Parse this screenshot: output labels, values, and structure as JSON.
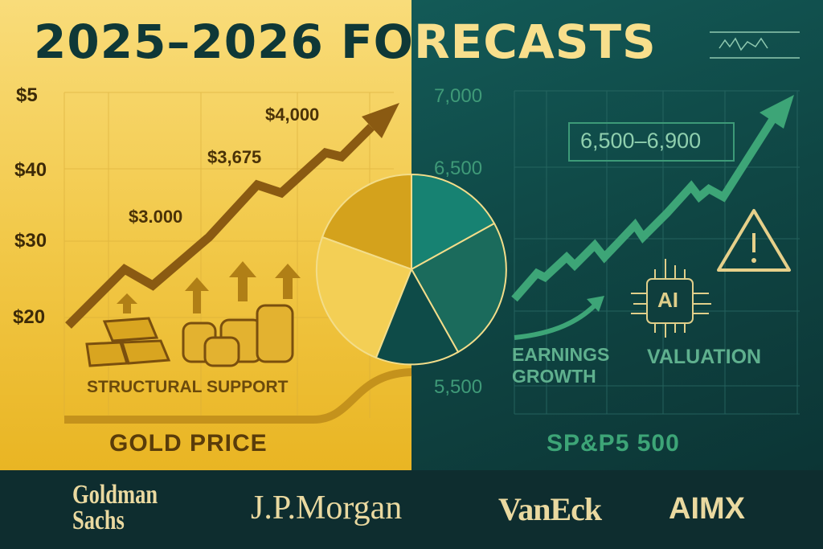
{
  "title": "2025–2026 FORECASTS",
  "chart_data": [
    {
      "type": "line",
      "title": "GOLD PRICE",
      "ytick_labels": [
        "$5",
        "$40",
        "$30",
        "$20"
      ],
      "annotations": [
        "$4,000",
        "$3,675",
        "$3.000"
      ],
      "caption": "STRUCTURAL SUPPORT",
      "trend": "up"
    },
    {
      "type": "line",
      "title": "SP&P5 500",
      "ytick_labels": [
        "7,000",
        "6,500",
        "5,500"
      ],
      "range_label": "6,500–6,900",
      "annotations": [
        "EARNINGS GROWTH",
        "VALUATION"
      ],
      "trend": "up"
    },
    {
      "type": "pie",
      "slices": [
        {
          "name": "gold-dark",
          "value": 17
        },
        {
          "name": "gold-light",
          "value": 20
        },
        {
          "name": "teal-1",
          "value": 20
        },
        {
          "name": "teal-2",
          "value": 15
        },
        {
          "name": "teal-3",
          "value": 28
        }
      ]
    }
  ],
  "gold": {
    "ticks": [
      "$5",
      "$40",
      "$30",
      "$20"
    ],
    "labels": [
      "$4,000",
      "$3,675",
      "$3.000"
    ],
    "support": "STRUCTURAL SUPPORT",
    "name": "GOLD PRICE"
  },
  "spx": {
    "ticks": [
      "7,000",
      "6,500",
      "5,500"
    ],
    "range": "6,500–6,900",
    "earnings1": "EARNINGS",
    "earnings2": "GROWTH",
    "ai": "AI",
    "valuation": "VALUATION",
    "name": "SP&P5 500"
  },
  "logos": {
    "gs1": "Goldman",
    "gs2": "Sachs",
    "jpm": "J.P.Morgan",
    "vaneck": "VanEck",
    "aimx": "AIMX"
  },
  "colors": {
    "gold": "#f2c94a",
    "teal": "#0f4644",
    "green": "#3da577",
    "brown": "#8a5a12",
    "cream": "#f8df8c"
  }
}
